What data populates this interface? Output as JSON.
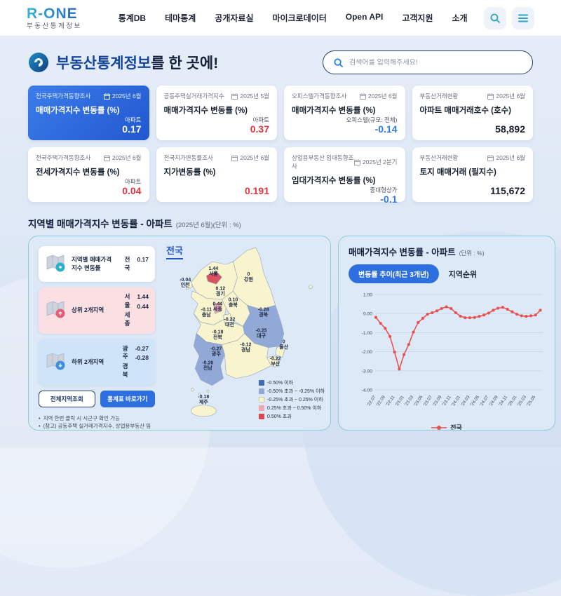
{
  "header": {
    "logo_title": "R-ONE",
    "logo_subtitle": "부동산통계정보",
    "nav": [
      "통계DB",
      "테마통계",
      "공개자료실",
      "마이크로데이터",
      "Open API",
      "고객지원",
      "소개"
    ]
  },
  "hero": {
    "title_em": "부동산통계정보",
    "title_rest": "를 한 곳에!",
    "search_placeholder": "검색어를 입력해주세요!"
  },
  "cards": [
    {
      "survey": "전국주택가격동향조사",
      "date": "2025년 6월",
      "title": "매매가격지수 변동률 (%)",
      "sub": "아파트",
      "value": "0.17",
      "tone": "white",
      "active": true
    },
    {
      "survey": "공동주택실거래가격지수",
      "date": "2025년 5월",
      "title": "매매가격지수 변동률 (%)",
      "sub": "아파트",
      "value": "0.37",
      "tone": "red",
      "active": false
    },
    {
      "survey": "오피스텔가격동향조사",
      "date": "2025년 6월",
      "title": "매매가격지수 변동률 (%)",
      "sub": "오피스텔(규모: 전체)",
      "value": "-0.14",
      "tone": "blue",
      "active": false
    },
    {
      "survey": "부동산거래현황",
      "date": "2025년 6월",
      "title": "아파트 매매거래호수 (호수)",
      "sub": "",
      "value": "58,892",
      "tone": "dark",
      "active": false
    },
    {
      "survey": "전국주택가격동향조사",
      "date": "2025년 6월",
      "title": "전세가격지수 변동률 (%)",
      "sub": "아파트",
      "value": "0.04",
      "tone": "red",
      "active": false
    },
    {
      "survey": "전국지가변동률조사",
      "date": "2025년 6월",
      "title": "지가변동률 (%)",
      "sub": "",
      "value": "0.191",
      "tone": "red",
      "active": false
    },
    {
      "survey": "상업용부동산 임대동향조사",
      "date": "2025년 2분기",
      "title": "임대가격지수 변동률 (%)",
      "sub": "중대형상가",
      "value": "-0.1",
      "tone": "blue",
      "active": false
    },
    {
      "survey": "부동산거래현황",
      "date": "2025년 6월",
      "title": "토지 매매거래 (필지수)",
      "sub": "",
      "value": "115,672",
      "tone": "dark",
      "active": false
    }
  ],
  "section": {
    "title": "지역별 매매가격지수 변동률 - 아파트",
    "subtitle": "(2025년 6월)(단위 : %)"
  },
  "map_panel": {
    "map_title": "전국",
    "info_cards": [
      {
        "tone": "white",
        "icon": "map-pin-icon",
        "label": "지역별 매매가격지수 변동률",
        "rows": [
          {
            "region": "전국",
            "value": "0.17"
          }
        ]
      },
      {
        "tone": "pink",
        "icon": "map-up-icon",
        "label": "상위 2개지역",
        "rows": [
          {
            "region": "서울",
            "value": "1.44"
          },
          {
            "region": "세종",
            "value": "0.44"
          }
        ]
      },
      {
        "tone": "blue",
        "icon": "map-down-icon",
        "label": "하위 2개지역",
        "rows": [
          {
            "region": "광주",
            "value": "-0.27"
          },
          {
            "region": "경북",
            "value": "-0.28"
          }
        ]
      }
    ],
    "buttons": {
      "all_regions": "전체지역조회",
      "go_table": "통계표 바로가기"
    },
    "notes": [
      "지역 한번 클릭 시 시군구 확인 가능",
      "(참고) 공동주택 실거래가격지수, 상업용부동산 임대동향조사, 오피스텔 가격동향조사는 시군구 선택불가"
    ],
    "band_colors": {
      "red": "#d9525c",
      "pink": "#f0a9b3",
      "yellow": "#f8f4cd",
      "lightblue": "#92a9d7",
      "darkblue": "#3d6cb4"
    },
    "regions": [
      {
        "name": "서울",
        "value": "1.44",
        "band": "red"
      },
      {
        "name": "인천",
        "value": "-0.04",
        "band": "yellow"
      },
      {
        "name": "경기",
        "value": "0.12",
        "band": "yellow"
      },
      {
        "name": "강원",
        "value": "0",
        "band": "yellow"
      },
      {
        "name": "충북",
        "value": "0.10",
        "band": "yellow"
      },
      {
        "name": "세종",
        "value": "0.44",
        "band": "pink"
      },
      {
        "name": "충남",
        "value": "-0.11",
        "band": "yellow"
      },
      {
        "name": "대전",
        "value": "-0.22",
        "band": "yellow"
      },
      {
        "name": "경북",
        "value": "-0.28",
        "band": "lightblue"
      },
      {
        "name": "대구",
        "value": "-0.25",
        "band": "lightblue"
      },
      {
        "name": "울산",
        "value": "0",
        "band": "yellow"
      },
      {
        "name": "전북",
        "value": "-0.18",
        "band": "yellow"
      },
      {
        "name": "경남",
        "value": "-0.12",
        "band": "yellow"
      },
      {
        "name": "광주",
        "value": "-0.27",
        "band": "lightblue"
      },
      {
        "name": "부산",
        "value": "-0.22",
        "band": "yellow"
      },
      {
        "name": "전남",
        "value": "-0.26",
        "band": "lightblue"
      },
      {
        "name": "제주",
        "value": "-0.18",
        "band": "yellow"
      }
    ],
    "legend": [
      {
        "label": "-0.50% 이하",
        "color": "#3d6cb4"
      },
      {
        "label": "-0.50% 초과 ~ -0.25% 이하",
        "color": "#92a9d7"
      },
      {
        "label": "-0.25% 초과 ~ 0.25% 이하",
        "color": "#f8f4cd"
      },
      {
        "label": "0.25% 초과 ~ 0.50% 이하",
        "color": "#f0a9b3"
      },
      {
        "label": "0.50% 초과",
        "color": "#d9464f"
      }
    ]
  },
  "chart_panel": {
    "title": "매매가격지수 변동률 - 아파트",
    "unit": "(단위 : %)",
    "tab_active": "변동률 추이(최근 3개년)",
    "tab_inactive": "지역순위",
    "legend": "전국"
  },
  "chart_data": {
    "type": "line",
    "title": "변동률 추이(최근 3개년)",
    "ylabel": "%",
    "ylim": [
      -4,
      1
    ],
    "yticks": [
      "1.00",
      "0.00",
      "-1.00",
      "-2.00",
      "-3.00",
      "-4.00"
    ],
    "tick_every": 2,
    "x": [
      "'22.07",
      "'22.08",
      "'22.09",
      "'22.10",
      "'22.11",
      "'22.12",
      "'23.01",
      "'23.02",
      "'23.03",
      "'23.04",
      "'23.05",
      "'23.06",
      "'23.07",
      "'23.08",
      "'23.09",
      "'23.10",
      "'23.11",
      "'23.12",
      "'24.01",
      "'24.02",
      "'24.03",
      "'24.04",
      "'24.05",
      "'24.06",
      "'24.07",
      "'24.08",
      "'24.09",
      "'24.10",
      "'24.11",
      "'24.12",
      "'25.01",
      "'25.02",
      "'25.03",
      "'25.04",
      "'25.05",
      "'25.06"
    ],
    "series": [
      {
        "name": "전국",
        "color": "#e8504f",
        "values": [
          -0.2,
          -0.51,
          -0.78,
          -1.2,
          -2.02,
          -2.91,
          -2.15,
          -1.62,
          -0.97,
          -0.47,
          -0.25,
          -0.04,
          0.04,
          0.14,
          0.26,
          0.35,
          0.26,
          0.04,
          -0.14,
          -0.22,
          -0.22,
          -0.21,
          -0.15,
          -0.08,
          0.02,
          0.17,
          0.28,
          0.32,
          0.22,
          0.09,
          -0.04,
          -0.12,
          -0.15,
          -0.12,
          -0.08,
          0.17
        ]
      }
    ],
    "legend_position": "bottom"
  }
}
